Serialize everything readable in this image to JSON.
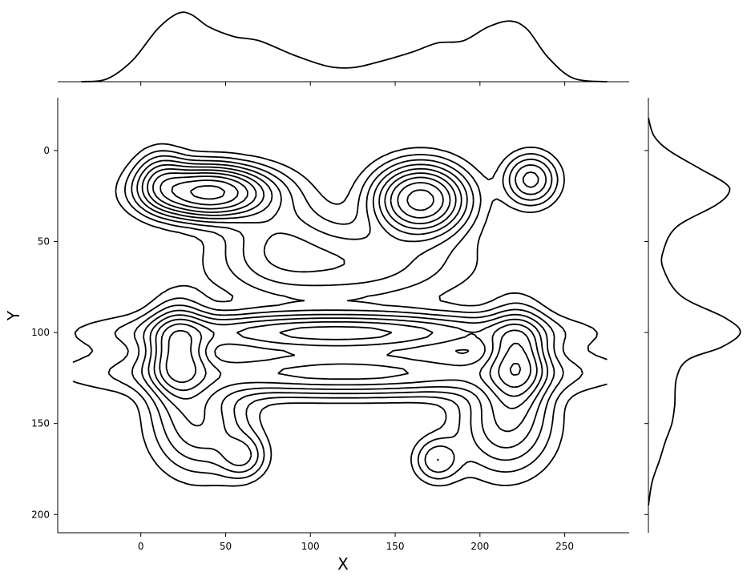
{
  "chart_data": {
    "type": "kde-joint-contour",
    "xlabel": "X",
    "ylabel": "Y",
    "xlim": [
      -49,
      288
    ],
    "ylim": [
      210,
      -29
    ],
    "y_inverted": true,
    "xticks": [
      0,
      50,
      100,
      150,
      200,
      250
    ],
    "yticks": [
      0,
      50,
      100,
      150,
      200
    ],
    "grid": false,
    "line_color": "#000000",
    "modes": [
      {
        "x": 40,
        "y": 23,
        "sx": 22,
        "sy": 9,
        "w": 1.0
      },
      {
        "x": 22,
        "y": 112,
        "sx": 11,
        "sy": 16,
        "w": 0.55
      },
      {
        "x": 12,
        "y": 15,
        "sx": 10,
        "sy": 10,
        "w": 0.25
      },
      {
        "x": 165,
        "y": 27,
        "sx": 17,
        "sy": 12,
        "w": 0.85
      },
      {
        "x": 222,
        "y": 115,
        "sx": 11,
        "sy": 16,
        "w": 0.55
      },
      {
        "x": 230,
        "y": 16,
        "sx": 10,
        "sy": 9,
        "w": 0.35
      },
      {
        "x": 60,
        "y": 168,
        "sx": 9,
        "sy": 8,
        "w": 0.22
      },
      {
        "x": 175,
        "y": 170,
        "sx": 9,
        "sy": 8,
        "w": 0.22
      },
      {
        "x": 120,
        "y": 62,
        "sx": 45,
        "sy": 14,
        "w": 0.22
      },
      {
        "x": 115,
        "y": 100,
        "sx": 70,
        "sy": 7,
        "w": 0.55
      },
      {
        "x": 120,
        "y": 122,
        "sx": 80,
        "sy": 8,
        "w": 0.45
      },
      {
        "x": 35,
        "y": 150,
        "sx": 18,
        "sy": 18,
        "w": 0.3
      },
      {
        "x": 215,
        "y": 150,
        "sx": 18,
        "sy": 18,
        "w": 0.3
      },
      {
        "x": 80,
        "y": 45,
        "sx": 20,
        "sy": 18,
        "w": 0.15
      }
    ],
    "contour_levels": [
      0.05,
      0.1,
      0.16,
      0.23,
      0.31,
      0.4,
      0.5,
      0.62,
      0.76,
      0.92
    ],
    "marginal_x": {
      "x": [
        -35,
        -20,
        -5,
        10,
        22,
        30,
        40,
        55,
        70,
        90,
        110,
        125,
        140,
        160,
        175,
        190,
        205,
        218,
        228,
        240,
        255,
        275
      ],
      "density": [
        0.0,
        0.04,
        0.3,
        0.75,
        0.97,
        0.95,
        0.78,
        0.64,
        0.58,
        0.38,
        0.22,
        0.2,
        0.28,
        0.42,
        0.55,
        0.58,
        0.78,
        0.86,
        0.74,
        0.35,
        0.05,
        0.0
      ]
    },
    "marginal_y": {
      "y": [
        -18,
        -8,
        0,
        10,
        18,
        23,
        30,
        42,
        55,
        65,
        80,
        92,
        100,
        108,
        115,
        125,
        140,
        150,
        160,
        170,
        182,
        195
      ],
      "density": [
        0.0,
        0.06,
        0.22,
        0.55,
        0.82,
        0.86,
        0.72,
        0.3,
        0.16,
        0.16,
        0.35,
        0.82,
        0.98,
        0.78,
        0.42,
        0.3,
        0.28,
        0.25,
        0.18,
        0.12,
        0.04,
        0.0
      ]
    }
  }
}
